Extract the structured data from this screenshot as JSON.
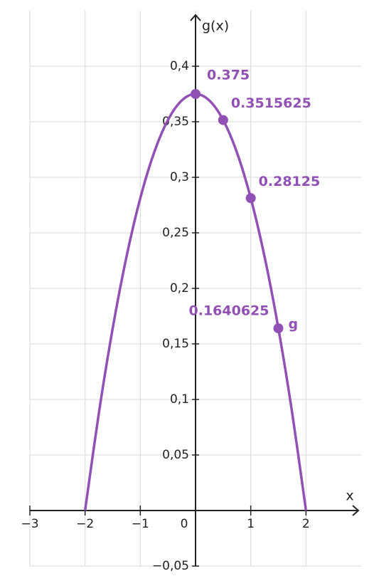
{
  "chart_data": {
    "type": "line",
    "x_label": "x",
    "y_label": "g(x)",
    "x": [
      -2,
      -1.75,
      -1.5,
      -1.25,
      -1,
      -0.75,
      -0.5,
      -0.25,
      0,
      0.25,
      0.5,
      0.75,
      1,
      1.25,
      1.5,
      1.75,
      2
    ],
    "series": [
      {
        "name": "g",
        "color": "#9150b4",
        "values": [
          0,
          0.087890625,
          0.1640625,
          0.228515625,
          0.28125,
          0.322265625,
          0.3515625,
          0.369140625,
          0.375,
          0.369140625,
          0.3515625,
          0.322265625,
          0.28125,
          0.228515625,
          0.1640625,
          0.087890625,
          0
        ]
      }
    ],
    "points": {
      "color": "#9150b4",
      "x": [
        0,
        0.5,
        1,
        1.5
      ],
      "values": [
        0.375,
        0.3515625,
        0.28125,
        0.1640625
      ]
    },
    "xlim": [
      -3,
      3
    ],
    "ylim": [
      -0.05,
      0.45
    ],
    "xticks": [
      {
        "value": -3,
        "label": "−3"
      },
      {
        "value": -2,
        "label": "−2"
      },
      {
        "value": -1,
        "label": "−1"
      },
      0,
      1,
      2
    ],
    "yticks": [
      {
        "value": -0.05,
        "label": "−0,05"
      },
      {
        "value": 0.05,
        "label": "0,05"
      },
      {
        "value": 0.1,
        "label": "0,1"
      },
      {
        "value": 0.15,
        "label": "0,15"
      },
      {
        "value": 0.2,
        "label": "0,2"
      },
      {
        "value": 0.25,
        "label": "0,25"
      },
      {
        "value": 0.3,
        "label": "0,3"
      },
      {
        "value": 0.35,
        "label": "0,35"
      },
      {
        "value": 0.4,
        "label": "0,4"
      }
    ],
    "grid": true
  }
}
